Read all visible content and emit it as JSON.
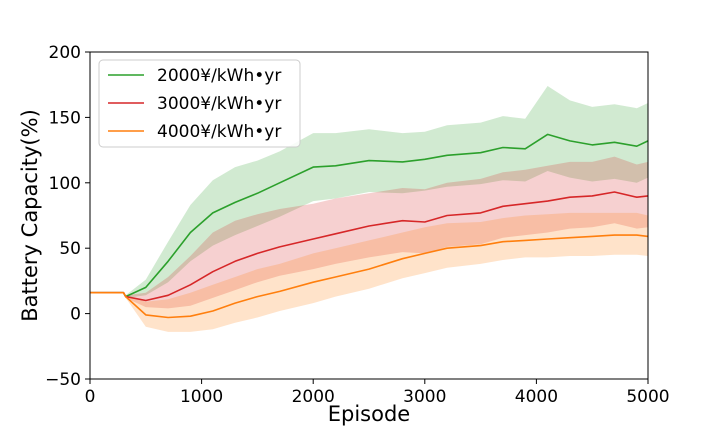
{
  "chart_data": {
    "type": "line",
    "title": "",
    "xlabel": "Episode",
    "ylabel": "Battery Capacity(%)",
    "xlim": [
      0,
      5000
    ],
    "ylim": [
      -50,
      200
    ],
    "xticks": [
      0,
      1000,
      2000,
      3000,
      4000,
      5000
    ],
    "yticks": [
      -50,
      0,
      50,
      100,
      150,
      200
    ],
    "xtick_labels": [
      "0",
      "1000",
      "2000",
      "3000",
      "4000",
      "5000"
    ],
    "ytick_labels": [
      "−50",
      "0",
      "50",
      "100",
      "150",
      "200"
    ],
    "grid": false,
    "legend_position": "top-left",
    "series": [
      {
        "name": "2000¥/kWh•yr",
        "color": "#2ca02c",
        "x": [
          0,
          300,
          320,
          500,
          700,
          900,
          1100,
          1300,
          1500,
          1700,
          2000,
          2200,
          2500,
          2800,
          3000,
          3200,
          3500,
          3700,
          3900,
          4100,
          4300,
          4500,
          4700,
          4900,
          5000
        ],
        "y": [
          16,
          16,
          13,
          20,
          40,
          62,
          77,
          85,
          92,
          100,
          112,
          113,
          117,
          116,
          118,
          121,
          123,
          127,
          126,
          137,
          132,
          129,
          131,
          128,
          132
        ],
        "lower": [
          16,
          16,
          12,
          14,
          24,
          40,
          52,
          60,
          67,
          74,
          86,
          88,
          93,
          92,
          94,
          97,
          99,
          102,
          101,
          109,
          104,
          101,
          103,
          100,
          104
        ],
        "upper": [
          16,
          16,
          14,
          26,
          55,
          83,
          102,
          112,
          117,
          124,
          138,
          138,
          141,
          138,
          139,
          144,
          146,
          151,
          149,
          174,
          163,
          158,
          160,
          157,
          161
        ]
      },
      {
        "name": "3000¥/kWh•yr",
        "color": "#d62728",
        "x": [
          0,
          300,
          320,
          500,
          700,
          900,
          1100,
          1300,
          1500,
          1700,
          2000,
          2200,
          2500,
          2800,
          3000,
          3200,
          3500,
          3700,
          3900,
          4100,
          4300,
          4500,
          4700,
          4900,
          5000
        ],
        "y": [
          16,
          16,
          13,
          10,
          14,
          22,
          32,
          40,
          46,
          51,
          57,
          61,
          67,
          71,
          70,
          75,
          77,
          82,
          84,
          86,
          89,
          90,
          93,
          89,
          90
        ],
        "lower": [
          16,
          16,
          12,
          5,
          4,
          6,
          12,
          18,
          24,
          29,
          34,
          38,
          43,
          47,
          46,
          51,
          53,
          58,
          60,
          62,
          65,
          66,
          69,
          65,
          66
        ],
        "upper": [
          16,
          16,
          14,
          16,
          28,
          44,
          62,
          71,
          76,
          80,
          84,
          88,
          92,
          96,
          95,
          100,
          103,
          108,
          110,
          113,
          116,
          116,
          120,
          114,
          116
        ]
      },
      {
        "name": "4000¥/kWh•yr",
        "color": "#ff7f0e",
        "x": [
          0,
          300,
          320,
          500,
          700,
          900,
          1100,
          1300,
          1500,
          1700,
          2000,
          2200,
          2500,
          2800,
          3000,
          3200,
          3500,
          3700,
          3900,
          4100,
          4300,
          4500,
          4700,
          4900,
          5000
        ],
        "y": [
          16,
          16,
          13,
          -1,
          -3,
          -2,
          2,
          8,
          13,
          17,
          24,
          28,
          34,
          42,
          46,
          50,
          52,
          55,
          56,
          57,
          58,
          59,
          60,
          60,
          59
        ],
        "lower": [
          16,
          16,
          12,
          -10,
          -14,
          -14,
          -12,
          -7,
          -3,
          2,
          8,
          13,
          19,
          27,
          31,
          35,
          38,
          41,
          43,
          43,
          44,
          44,
          45,
          45,
          44
        ],
        "upper": [
          16,
          16,
          14,
          9,
          11,
          16,
          22,
          28,
          34,
          38,
          46,
          50,
          56,
          62,
          66,
          69,
          70,
          73,
          75,
          76,
          77,
          77,
          77,
          77,
          75
        ]
      }
    ]
  }
}
